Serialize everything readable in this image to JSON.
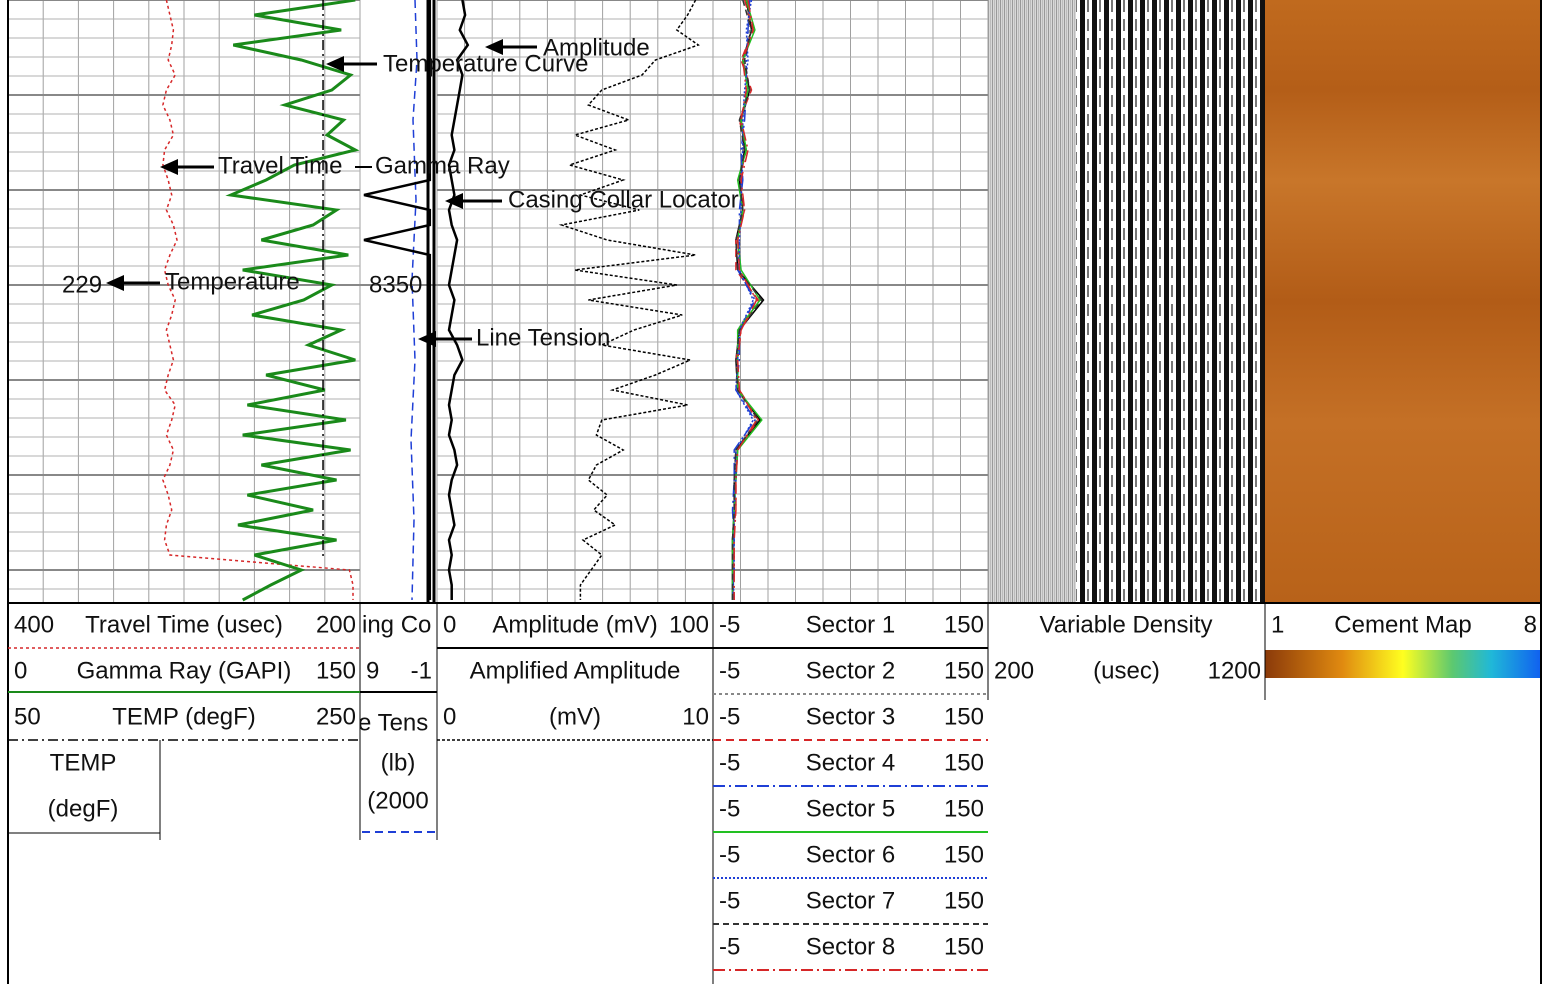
{
  "curves": {
    "travel_time": {
      "left": 400,
      "label": "Travel Time (usec)",
      "right": 200,
      "color": "#d62728",
      "values": [
        310,
        308,
        306,
        307,
        309,
        305,
        310,
        312,
        308,
        306,
        311,
        312,
        309,
        307,
        310,
        306,
        304,
        308,
        311,
        309,
        305,
        307,
        310,
        308,
        306,
        309,
        311,
        305,
        307,
        310,
        306,
        308,
        312,
        309,
        307,
        310,
        311,
        308,
        206,
        204,
        204
      ]
    },
    "gamma_ray": {
      "left": 0,
      "label": "Gamma Ray (GAPI)",
      "right": 150,
      "color": "#1a8a1a",
      "values": [
        148,
        105,
        142,
        96,
        125,
        146,
        138,
        118,
        143,
        136,
        148,
        122,
        110,
        95,
        140,
        130,
        108,
        145,
        100,
        138,
        126,
        104,
        142,
        128,
        148,
        110,
        135,
        102,
        144,
        100,
        146,
        108,
        140,
        102,
        130,
        98,
        140,
        105,
        125,
        112,
        100
      ]
    },
    "temp": {
      "left": 50,
      "label": "TEMP (degF)",
      "right": 250,
      "value": 229
    },
    "ccl": {
      "label": "ing Co",
      "left": 9,
      "right": -1,
      "values": [
        -0.4,
        -0.4,
        -0.4,
        -0.4,
        -0.4,
        -0.4,
        -0.4,
        -0.4,
        -0.4,
        -0.4,
        -0.4,
        -0.4,
        -0.4,
        9,
        -0.4,
        -0.4,
        9,
        -0.4,
        -0.4,
        -0.4,
        -0.4,
        -0.4,
        -0.4,
        -0.4,
        -0.4,
        -0.4,
        -0.4,
        -0.4,
        -0.4,
        -0.4,
        -0.4,
        -0.4,
        -0.4,
        -0.4,
        -0.4,
        -0.4,
        -0.4,
        -0.4,
        -0.4,
        -0.4,
        -0.4
      ]
    },
    "line_tension": {
      "label": "e Tens",
      "unit": "(lb)",
      "scale": "(2000",
      "color": "#1f3fd6"
    },
    "amplitude": {
      "left": 0,
      "label": "Amplitude (mV)",
      "right": 100,
      "values": [
        8,
        9,
        7,
        10,
        6,
        8,
        7,
        6,
        5,
        4,
        5,
        3,
        4,
        5,
        3,
        4,
        6,
        5,
        4,
        3,
        5,
        4,
        3,
        6,
        8,
        5,
        4,
        3,
        4,
        3,
        5,
        6,
        4,
        3,
        4,
        5,
        3,
        4,
        3,
        4,
        4
      ]
    },
    "amplified_amplitude": {
      "title": "Amplified Amplitude",
      "left": 0,
      "label": "(mV)",
      "right": 10,
      "values": [
        9.5,
        9.2,
        8.8,
        9.6,
        8,
        7.5,
        6,
        5.5,
        7,
        5,
        6.5,
        4.8,
        6.8,
        5.2,
        7.4,
        4.5,
        6.2,
        9.5,
        5,
        8.8,
        5.5,
        9,
        7.2,
        6,
        9.3,
        8,
        6.4,
        9.2,
        6,
        5.8,
        6.8,
        5.8,
        5.5,
        6.2,
        5.7,
        6.5,
        5.3,
        6,
        5.6,
        5.2,
        5.2
      ]
    },
    "sectors": [
      {
        "left": -5,
        "label": "Sector 1",
        "right": 150,
        "color": "#000000",
        "values": [
          12,
          15,
          10,
          14,
          9,
          11,
          8,
          10,
          6,
          7,
          22,
          8,
          6,
          7,
          20,
          6,
          5,
          5,
          4,
          4,
          4
        ]
      },
      {
        "left": -5,
        "label": "Sector 2",
        "right": 150,
        "color": "#888888",
        "values": [
          13,
          14,
          11,
          13,
          10,
          10,
          9,
          9,
          7,
          8,
          18,
          7,
          7,
          6,
          18,
          6,
          5,
          5,
          5,
          4,
          4
        ]
      },
      {
        "left": -5,
        "label": "Sector 3",
        "right": 150,
        "color": "#d62728",
        "values": [
          11,
          16,
          9,
          15,
          8,
          12,
          8,
          11,
          6,
          6,
          19,
          9,
          6,
          8,
          19,
          7,
          6,
          6,
          4,
          5,
          4
        ]
      },
      {
        "left": -5,
        "label": "Sector 4",
        "right": 150,
        "color": "#1f3fd6",
        "values": [
          14,
          13,
          12,
          12,
          11,
          9,
          10,
          8,
          8,
          7,
          17,
          8,
          8,
          6,
          17,
          5,
          5,
          4,
          5,
          4,
          5
        ]
      },
      {
        "left": -5,
        "label": "Sector 5",
        "right": 150,
        "color": "#22c022",
        "values": [
          12,
          17,
          10,
          13,
          9,
          12,
          7,
          10,
          7,
          9,
          20,
          7,
          7,
          7,
          21,
          7,
          6,
          5,
          4,
          4,
          4
        ]
      },
      {
        "left": -5,
        "label": "Sector 6",
        "right": 150,
        "color": "#1f3fd6",
        "values": [
          15,
          12,
          13,
          11,
          10,
          10,
          9,
          9,
          8,
          8,
          16,
          8,
          7,
          6,
          16,
          6,
          6,
          5,
          5,
          5,
          4
        ]
      },
      {
        "left": -5,
        "label": "Sector 7",
        "right": 150,
        "color": "#333333",
        "values": [
          10,
          15,
          11,
          14,
          8,
          11,
          8,
          10,
          6,
          7,
          21,
          8,
          6,
          7,
          19,
          6,
          5,
          5,
          4,
          4,
          4
        ]
      },
      {
        "left": -5,
        "label": "Sector 8",
        "right": 150,
        "color": "#d62728",
        "values": [
          13,
          16,
          10,
          12,
          9,
          13,
          9,
          11,
          7,
          8,
          18,
          9,
          7,
          8,
          18,
          7,
          6,
          6,
          5,
          5,
          5
        ]
      }
    ]
  },
  "temp_box": [
    "TEMP",
    "(degF)"
  ],
  "vdl": {
    "title": "Variable Density",
    "left": 200,
    "label": "(usec)",
    "right": 1200
  },
  "cement_map": {
    "left": 1,
    "label": "Cement Map",
    "right": 8
  },
  "depth_label": "8350",
  "annotations": {
    "amplitude": "Amplitude",
    "temperature_curve": "Temperature Curve",
    "travel_time": "Travel Time",
    "gamma_ray": "Gamma Ray",
    "casing_collar_locator": "Casing Collar Locator",
    "temperature": "Temperature",
    "line_tension": "Line Tension"
  }
}
